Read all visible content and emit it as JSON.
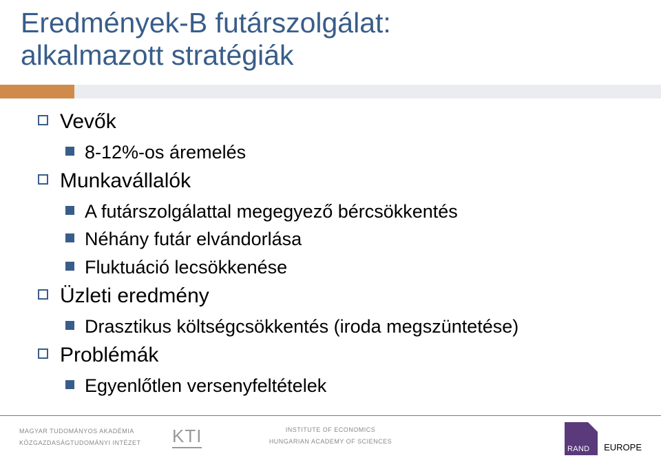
{
  "title": {
    "line1": "Eredmények-B futárszolgálat:",
    "line2": "alkalmazott stratégiák"
  },
  "bullets": {
    "item1": {
      "label": "Vevők",
      "sub": {
        "a": "8-12%-os áremelés"
      }
    },
    "item2": {
      "label": "Munkavállalók",
      "sub": {
        "a": "A futárszolgálattal megegyező bércsökkentés",
        "b": "Néhány futár elvándorlása",
        "c": "Fluktuáció lecsökkenése"
      }
    },
    "item3": {
      "label": "Üzleti eredmény",
      "sub": {
        "a": "Drasztikus költségcsökkentés (iroda megszüntetése)"
      }
    },
    "item4": {
      "label": "Problémák",
      "sub": {
        "a": "Egyenlőtlen versenyfeltételek"
      }
    }
  },
  "footer": {
    "left_line1": "MAGYAR TUDOMÁNYOS AKADÉMIA",
    "left_line2": "KÖZGAZDASÁGTUDOMÁNYI INTÉZET",
    "center_line1": "INSTITUTE OF ECONOMICS",
    "center_line2": "HUNGARIAN ACADEMY OF SCIENCES",
    "kti": "KTI",
    "rand": "RAND",
    "europe": "EUROPE"
  },
  "colors": {
    "title_color": "#385d8a",
    "accent_bar": "#d08a4c",
    "decor_bar": "#eaecef",
    "bullet_color": "#385d8a",
    "rand_bg": "#5a3a7a"
  }
}
